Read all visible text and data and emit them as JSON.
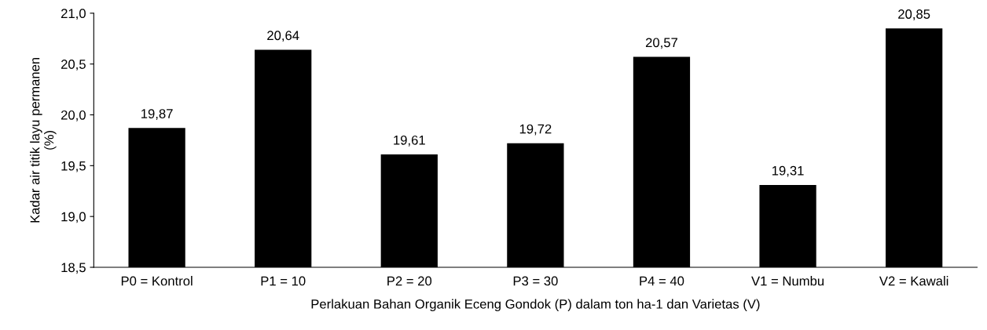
{
  "chart_data": {
    "type": "bar",
    "categories": [
      "P0 = Kontrol",
      "P1 = 10",
      "P2 = 20",
      "P3 = 30",
      "P4 = 40",
      "V1 = Numbu",
      "V2 = Kawali"
    ],
    "values": [
      19.87,
      20.64,
      19.61,
      19.72,
      20.57,
      19.31,
      20.85
    ],
    "value_labels": [
      "19,87",
      "20,64",
      "19,61",
      "19,72",
      "20,57",
      "19,31",
      "20,85"
    ],
    "color": "#000000",
    "xlabel": "Perlakuan Bahan Organik Eceng Gondok (P) dalam ton ha-1 dan Varietas (V)",
    "ylabel": "Kadar air titik layu permanen\n(%)",
    "ylim": [
      18.5,
      21.0
    ],
    "yticks": [
      {
        "value": 18.5,
        "label": "18,5"
      },
      {
        "value": 19.0,
        "label": "19,0"
      },
      {
        "value": 19.5,
        "label": "19,5"
      },
      {
        "value": 20.0,
        "label": "20,0"
      },
      {
        "value": 20.5,
        "label": "20,5"
      },
      {
        "value": 21.0,
        "label": "21,0"
      }
    ],
    "grid": false,
    "legend": false
  }
}
